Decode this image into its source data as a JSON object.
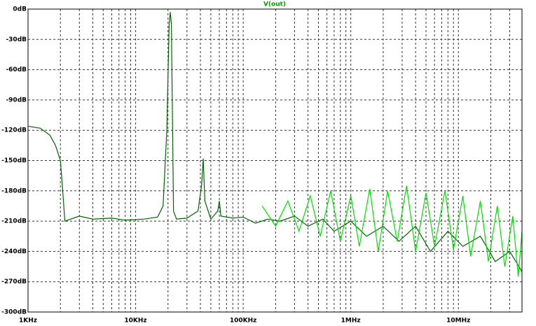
{
  "chart_data": {
    "type": "line",
    "title": "V(out)",
    "title_color": "#00a000",
    "xscale": "log",
    "grid": true,
    "xlim": [
      1000,
      39000000
    ],
    "ylim": [
      -300,
      0
    ],
    "xticks": [
      {
        "value": 1000,
        "label": "1KHz"
      },
      {
        "value": 10000,
        "label": "10KHz"
      },
      {
        "value": 100000,
        "label": "100KHz"
      },
      {
        "value": 1000000,
        "label": "1MHz"
      },
      {
        "value": 10000000,
        "label": "10MHz"
      }
    ],
    "xminorticks": [
      2000,
      3000,
      4000,
      5000,
      6000,
      7000,
      8000,
      9000,
      20000,
      30000,
      40000,
      50000,
      60000,
      70000,
      80000,
      90000,
      200000,
      300000,
      400000,
      500000,
      600000,
      700000,
      800000,
      900000,
      2000000,
      3000000,
      4000000,
      5000000,
      6000000,
      7000000,
      8000000,
      9000000,
      20000000,
      30000000
    ],
    "yticks": [
      {
        "value": 0,
        "label": "0dB"
      },
      {
        "value": -30,
        "label": "-30dB"
      },
      {
        "value": -60,
        "label": "-60dB"
      },
      {
        "value": -90,
        "label": "-90dB"
      },
      {
        "value": -120,
        "label": "-120dB"
      },
      {
        "value": -150,
        "label": "-150dB"
      },
      {
        "value": -180,
        "label": "-180dB"
      },
      {
        "value": -210,
        "label": "-210dB"
      },
      {
        "value": -240,
        "label": "-240dB"
      },
      {
        "value": -270,
        "label": "-270dB"
      },
      {
        "value": -300,
        "label": "-300dB"
      }
    ],
    "series": [
      {
        "color": "#006400",
        "x": [
          1000,
          1300,
          1600,
          1800,
          2000,
          2100,
          2200,
          3000,
          4000,
          6000,
          8000,
          12000,
          16000,
          18000,
          19500,
          20500,
          21000,
          21500,
          22500,
          24000,
          30000,
          38000,
          41000,
          42500,
          44000,
          50000,
          58000,
          60000,
          62000,
          80000,
          100000,
          130000,
          170000,
          220000,
          300000,
          400000,
          550000,
          700000,
          1000000,
          1400000,
          2000000,
          2800000,
          4000000,
          5500000,
          8000000,
          11000000,
          16000000,
          22000000,
          30000000,
          39000000
        ],
        "values": [
          -116,
          -118,
          -125,
          -135,
          -150,
          -180,
          -210,
          -205,
          -208,
          -207,
          -209,
          -208,
          -206,
          -195,
          -120,
          -15,
          -3,
          -15,
          -200,
          -208,
          -207,
          -200,
          -175,
          -148,
          -190,
          -208,
          -200,
          -190,
          -205,
          -207,
          -206,
          -212,
          -208,
          -210,
          -205,
          -215,
          -208,
          -220,
          -210,
          -225,
          -215,
          -230,
          -215,
          -240,
          -220,
          -235,
          -225,
          -250,
          -240,
          -260
        ]
      },
      {
        "color": "#00e000",
        "x": [
          150000,
          200000,
          260000,
          330000,
          420000,
          520000,
          650000,
          800000,
          1000000,
          1200000,
          1500000,
          1800000,
          2200000,
          2700000,
          3300000,
          4000000,
          5000000,
          6000000,
          7500000,
          9000000,
          11000000,
          13000000,
          16000000,
          19000000,
          23000000,
          27000000,
          32000000,
          36000000,
          39000000
        ],
        "values": [
          -195,
          -215,
          -190,
          -220,
          -185,
          -225,
          -180,
          -230,
          -185,
          -235,
          -178,
          -240,
          -180,
          -230,
          -175,
          -240,
          -182,
          -235,
          -180,
          -238,
          -185,
          -245,
          -190,
          -250,
          -195,
          -255,
          -205,
          -265,
          -220
        ]
      }
    ]
  }
}
